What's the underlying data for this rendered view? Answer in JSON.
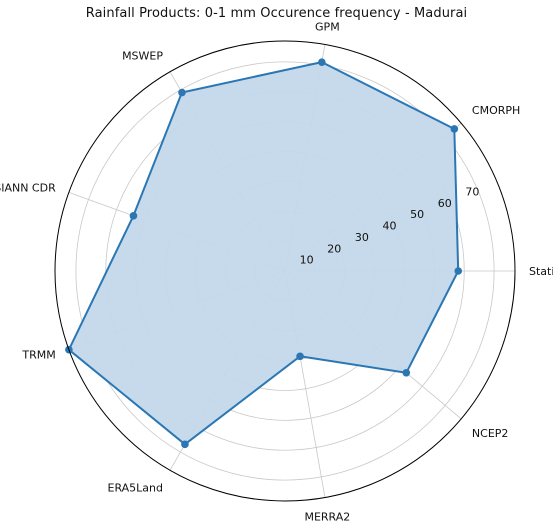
{
  "chart_data": {
    "type": "radar",
    "title": "Rainfall Products: 0-1 mm Occurence frequency - Madurai",
    "categories": [
      "Station",
      "CMORPH",
      "GPM",
      "MSWEP",
      "PERSIANN CDR",
      "TRMM",
      "ERA5Land",
      "MERRA2",
      "NCEP2"
    ],
    "values": [
      58,
      74,
      71,
      69,
      54,
      77,
      67,
      29,
      53
    ],
    "rticks": [
      10,
      20,
      30,
      40,
      50,
      60,
      70
    ],
    "rlim": [
      0,
      77
    ],
    "grid": true,
    "colors": {
      "line": "#2a77b4",
      "fill": "#c3d8ea",
      "grid": "#c8c8c8"
    }
  }
}
